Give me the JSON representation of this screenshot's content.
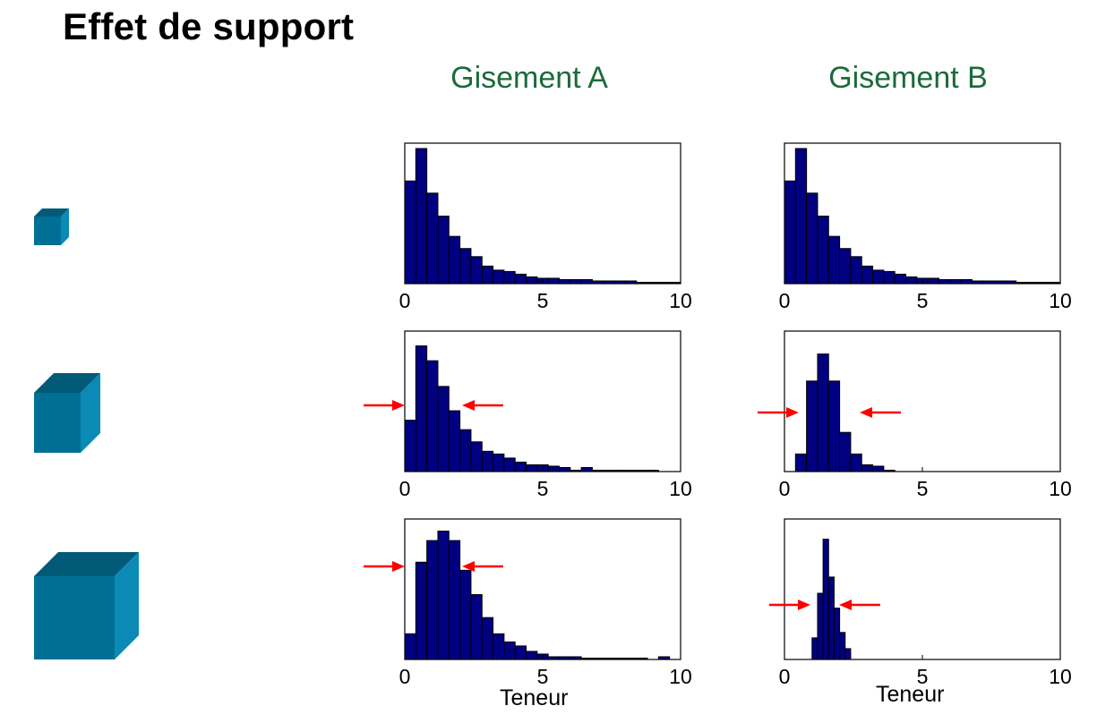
{
  "title": "Effet de support",
  "columns": [
    {
      "label": "Gisement A"
    },
    {
      "label": "Gisement B"
    }
  ],
  "x_axis_label": "Teneur",
  "colors": {
    "bar_fill": "#000080",
    "bar_edge": "#000000",
    "column_header": "#1a6b3a",
    "arrow": "#ff0000",
    "cube_front": "#006f96",
    "cube_top": "#005a78",
    "cube_side": "#0a8ab5"
  },
  "support_icons": [
    "small-cube-icon",
    "medium-cube-icon",
    "large-cube-icon"
  ],
  "chart_data": [
    {
      "type": "bar",
      "deposit": "Gisement A",
      "row": 1,
      "xlim": [
        0,
        10
      ],
      "xticks": [
        0,
        5,
        10
      ],
      "bin_width": 0.4,
      "bin_starts": [
        0,
        0.4,
        0.8,
        1.2,
        1.6,
        2,
        2.4,
        2.8,
        3.2,
        3.6,
        4,
        4.4,
        4.8,
        5.2,
        5.6,
        6,
        6.4,
        6.8,
        7.2,
        7.6,
        8,
        8.4,
        8.8,
        9.2,
        9.6
      ],
      "values": [
        0.76,
        1,
        0.67,
        0.5,
        0.35,
        0.26,
        0.2,
        0.13,
        0.1,
        0.09,
        0.07,
        0.05,
        0.04,
        0.04,
        0.03,
        0.03,
        0.03,
        0.02,
        0.02,
        0.02,
        0.02,
        0.01,
        0.01,
        0.01,
        0.01
      ]
    },
    {
      "type": "bar",
      "deposit": "Gisement B",
      "row": 1,
      "xlim": [
        0,
        10
      ],
      "xticks": [
        0,
        5,
        10
      ],
      "bin_width": 0.4,
      "bin_starts": [
        0,
        0.4,
        0.8,
        1.2,
        1.6,
        2,
        2.4,
        2.8,
        3.2,
        3.6,
        4,
        4.4,
        4.8,
        5.2,
        5.6,
        6,
        6.4,
        6.8,
        7.2,
        7.6,
        8,
        8.4,
        8.8,
        9.2,
        9.6
      ],
      "values": [
        0.76,
        1,
        0.67,
        0.5,
        0.35,
        0.26,
        0.2,
        0.13,
        0.1,
        0.09,
        0.07,
        0.05,
        0.04,
        0.04,
        0.03,
        0.03,
        0.03,
        0.02,
        0.02,
        0.02,
        0.02,
        0.01,
        0.01,
        0.01,
        0.01
      ]
    },
    {
      "type": "bar",
      "deposit": "Gisement A",
      "row": 2,
      "xlim": [
        0,
        10
      ],
      "xticks": [
        0,
        5,
        10
      ],
      "bin_width": 0.4,
      "bin_starts": [
        0,
        0.4,
        0.8,
        1.2,
        1.6,
        2,
        2.4,
        2.8,
        3.2,
        3.6,
        4,
        4.4,
        4.8,
        5.2,
        5.6,
        6,
        6.4,
        6.8,
        7.2,
        7.6,
        8,
        8.4,
        8.8,
        9.2,
        9.6
      ],
      "values": [
        0.38,
        0.93,
        0.82,
        0.63,
        0.45,
        0.31,
        0.22,
        0.15,
        0.13,
        0.1,
        0.07,
        0.05,
        0.05,
        0.04,
        0.03,
        0.01,
        0.03,
        0.01,
        0.01,
        0.01,
        0.01,
        0.01,
        0.01,
        0,
        0
      ]
    },
    {
      "type": "bar",
      "deposit": "Gisement B",
      "row": 2,
      "xlim": [
        0,
        10
      ],
      "xticks": [
        0,
        5,
        10
      ],
      "bin_width": 0.4,
      "bin_starts": [
        0.4,
        0.8,
        1.2,
        1.6,
        2,
        2.4,
        2.8,
        3.2,
        3.6
      ],
      "values": [
        0.13,
        0.67,
        0.87,
        0.67,
        0.29,
        0.13,
        0.05,
        0.04,
        0.01
      ]
    },
    {
      "type": "bar",
      "deposit": "Gisement A",
      "row": 3,
      "xlim": [
        0,
        10
      ],
      "xticks": [
        0,
        5,
        10
      ],
      "bin_width": 0.4,
      "bin_starts": [
        0,
        0.4,
        0.8,
        1.2,
        1.6,
        2,
        2.4,
        2.8,
        3.2,
        3.6,
        4,
        4.4,
        4.8,
        5.2,
        5.6,
        6,
        6.4,
        6.8,
        7.2,
        7.6,
        8,
        8.4,
        8.8,
        9.2,
        9.6
      ],
      "values": [
        0.19,
        0.72,
        0.88,
        0.95,
        0.88,
        0.66,
        0.48,
        0.31,
        0.19,
        0.13,
        0.1,
        0.06,
        0.04,
        0.02,
        0.02,
        0.02,
        0.01,
        0.01,
        0.01,
        0.01,
        0.01,
        0.01,
        0,
        0.02,
        0
      ]
    },
    {
      "type": "bar",
      "deposit": "Gisement B",
      "row": 3,
      "xlim": [
        0,
        10
      ],
      "xticks": [
        0,
        5,
        10
      ],
      "bin_width": 0.2,
      "bin_starts": [
        1,
        1.2,
        1.4,
        1.6,
        1.8,
        2,
        2.2
      ],
      "values": [
        0.16,
        0.49,
        0.89,
        0.61,
        0.38,
        0.2,
        0.08
      ]
    }
  ]
}
